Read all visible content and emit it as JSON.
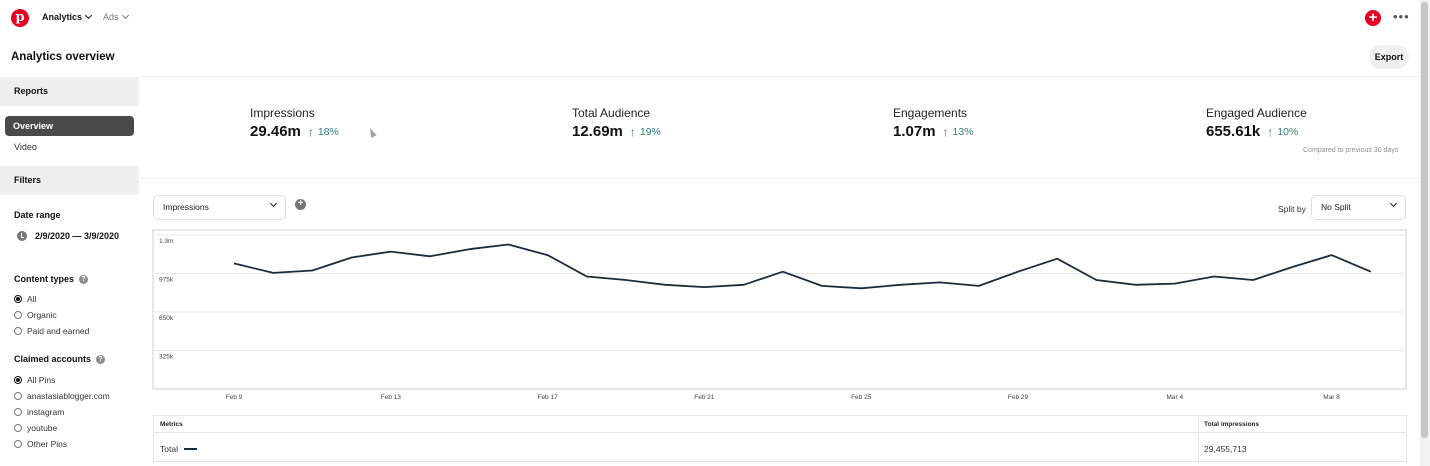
{
  "topbar": {
    "logo_letter": "p",
    "nav": [
      {
        "label": "Analytics",
        "active": true
      },
      {
        "label": "Ads",
        "active": false
      }
    ],
    "plus_icon": "+",
    "more_icon": "•••"
  },
  "page": {
    "title": "Analytics overview",
    "export_label": "Export"
  },
  "sidebar": {
    "reports_label": "Reports",
    "items": [
      {
        "label": "Overview",
        "selected": true
      },
      {
        "label": "Video",
        "selected": false
      }
    ],
    "filters_label": "Filters",
    "date_range_label": "Date range",
    "date_range_value": "2/9/2020 — 3/9/2020",
    "content_types_label": "Content types",
    "content_types": [
      {
        "label": "All",
        "checked": true
      },
      {
        "label": "Organic",
        "checked": false
      },
      {
        "label": "Paid and earned",
        "checked": false
      }
    ],
    "claimed_accounts_label": "Claimed accounts",
    "claimed_accounts": [
      {
        "label": "All Pins",
        "checked": true
      },
      {
        "label": "anastasiablogger.com",
        "checked": false
      },
      {
        "label": "instagram",
        "checked": false
      },
      {
        "label": "youtube",
        "checked": false
      },
      {
        "label": "Other Pins",
        "checked": false
      }
    ],
    "help_icon": "?"
  },
  "stats": [
    {
      "label": "Impressions",
      "value": "29.46m",
      "change": "18%"
    },
    {
      "label": "Total Audience",
      "value": "12.69m",
      "change": "19%"
    },
    {
      "label": "Engagements",
      "value": "1.07m",
      "change": "13%"
    },
    {
      "label": "Engaged Audience",
      "value": "655.61k",
      "change": "10%"
    }
  ],
  "stats_arrow": "↑",
  "compare_note": "Compared to previous 30 days",
  "controls": {
    "metric_select": "Impressions",
    "add_icon": "+",
    "split_label": "Split by",
    "split_select": "No Split"
  },
  "chart_data": {
    "type": "line",
    "title": "",
    "xlabel": "",
    "ylabel": "",
    "ylim": [
      0,
      1300000
    ],
    "y_ticks": [
      "1.3m",
      "975k",
      "650k",
      "325k"
    ],
    "y_tick_values": [
      1300000,
      975000,
      650000,
      325000
    ],
    "x_ticks": [
      "Feb 9",
      "Feb 13",
      "Feb 17",
      "Feb 21",
      "Feb 25",
      "Feb 29",
      "Mar 4",
      "Mar 8"
    ],
    "x_tick_index": [
      0,
      4,
      8,
      12,
      16,
      20,
      24,
      28
    ],
    "x": [
      "Feb 9",
      "Feb 10",
      "Feb 11",
      "Feb 12",
      "Feb 13",
      "Feb 14",
      "Feb 15",
      "Feb 16",
      "Feb 17",
      "Feb 18",
      "Feb 19",
      "Feb 20",
      "Feb 21",
      "Feb 22",
      "Feb 23",
      "Feb 24",
      "Feb 25",
      "Feb 26",
      "Feb 27",
      "Feb 28",
      "Feb 29",
      "Mar 1",
      "Mar 2",
      "Mar 3",
      "Mar 4",
      "Mar 5",
      "Mar 6",
      "Mar 7",
      "Mar 8",
      "Mar 9"
    ],
    "series": [
      {
        "values": [
          1060000,
          980000,
          1000000,
          1110000,
          1160000,
          1120000,
          1180000,
          1220000,
          1130000,
          950000,
          920000,
          880000,
          860000,
          880000,
          990000,
          870000,
          850000,
          880000,
          900000,
          870000,
          990000,
          1100000,
          920000,
          880000,
          890000,
          950000,
          920000,
          1030000,
          1130000,
          990000
        ],
        "color": "#1c2b3a"
      }
    ],
    "grid": true,
    "legend": "none"
  },
  "table": {
    "headers": [
      "Metrics",
      "Total impressions"
    ],
    "rows": [
      {
        "metric": "Total",
        "value": "29,455,713"
      }
    ]
  }
}
